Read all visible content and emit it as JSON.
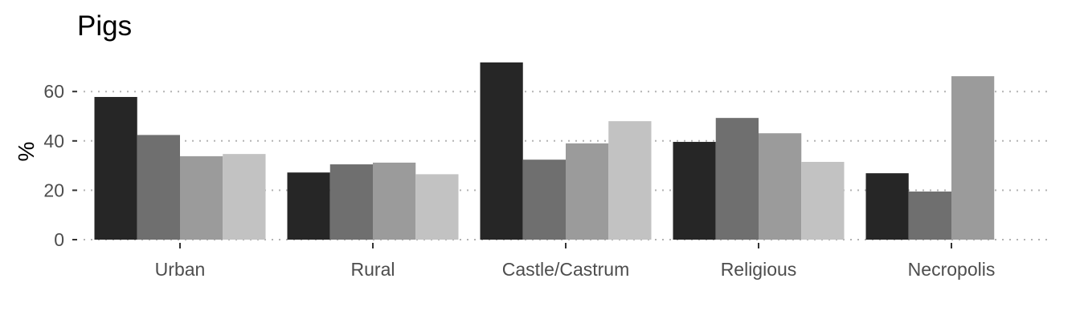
{
  "chart_data": {
    "type": "bar",
    "title": "Pigs",
    "xlabel": "",
    "ylabel": "%",
    "ylim": [
      0,
      74
    ],
    "yticks": [
      0,
      20,
      40,
      60
    ],
    "grid": "horizontal dotted",
    "legend": "none",
    "categories": [
      "Urban",
      "Rural",
      "Castle/Castrum",
      "Religious",
      "Necropolis"
    ],
    "series": [
      {
        "color": "#262626",
        "values": [
          57.8,
          27.2,
          71.8,
          39.6,
          26.9
        ]
      },
      {
        "color": "#6f6f6f",
        "values": [
          42.4,
          30.5,
          32.4,
          49.3,
          19.5
        ]
      },
      {
        "color": "#9b9b9b",
        "values": [
          33.8,
          31.2,
          39.0,
          43.1,
          66.2
        ]
      },
      {
        "color": "#c2c2c2",
        "values": [
          34.7,
          26.5,
          48.0,
          31.5,
          null
        ]
      }
    ]
  }
}
